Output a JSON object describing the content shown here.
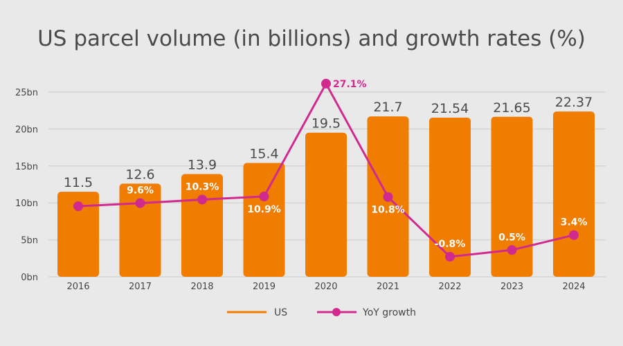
{
  "chart_data": {
    "type": "bar",
    "title": "US parcel volume (in billions) and growth rates (%)",
    "categories": [
      "2016",
      "2017",
      "2018",
      "2019",
      "2020",
      "2021",
      "2022",
      "2023",
      "2024"
    ],
    "ylim": [
      0,
      25
    ],
    "yticks": [
      "0bn",
      "5bn",
      "10bn",
      "15bn",
      "20bn",
      "25bn"
    ],
    "ytick_values": [
      0,
      5,
      10,
      15,
      20,
      25
    ],
    "grid": true,
    "legend_placement": "bottom-center",
    "series": [
      {
        "name": "US",
        "type": "bar",
        "color": "#f07c00",
        "values": [
          11.5,
          12.6,
          13.9,
          15.4,
          19.5,
          21.7,
          21.54,
          21.65,
          22.37
        ],
        "labels": [
          "11.5",
          "12.6",
          "13.9",
          "15.4",
          "19.5",
          "21.7",
          "21.54",
          "21.65",
          "22.37"
        ]
      },
      {
        "name": "YoY growth",
        "type": "line",
        "color": "#d12a8f",
        "values": [
          9.0,
          9.6,
          10.3,
          10.9,
          27.1,
          10.8,
          -0.8,
          0.5,
          3.4
        ],
        "labels": [
          "",
          "9.6%",
          "10.3%",
          "10.9%",
          "27.1%",
          "10.8%",
          "-0.8%",
          "0.5%",
          "3.4%"
        ],
        "label_position": [
          "above",
          "above",
          "above",
          "below",
          "right",
          "below",
          "above",
          "above",
          "above"
        ]
      }
    ]
  }
}
